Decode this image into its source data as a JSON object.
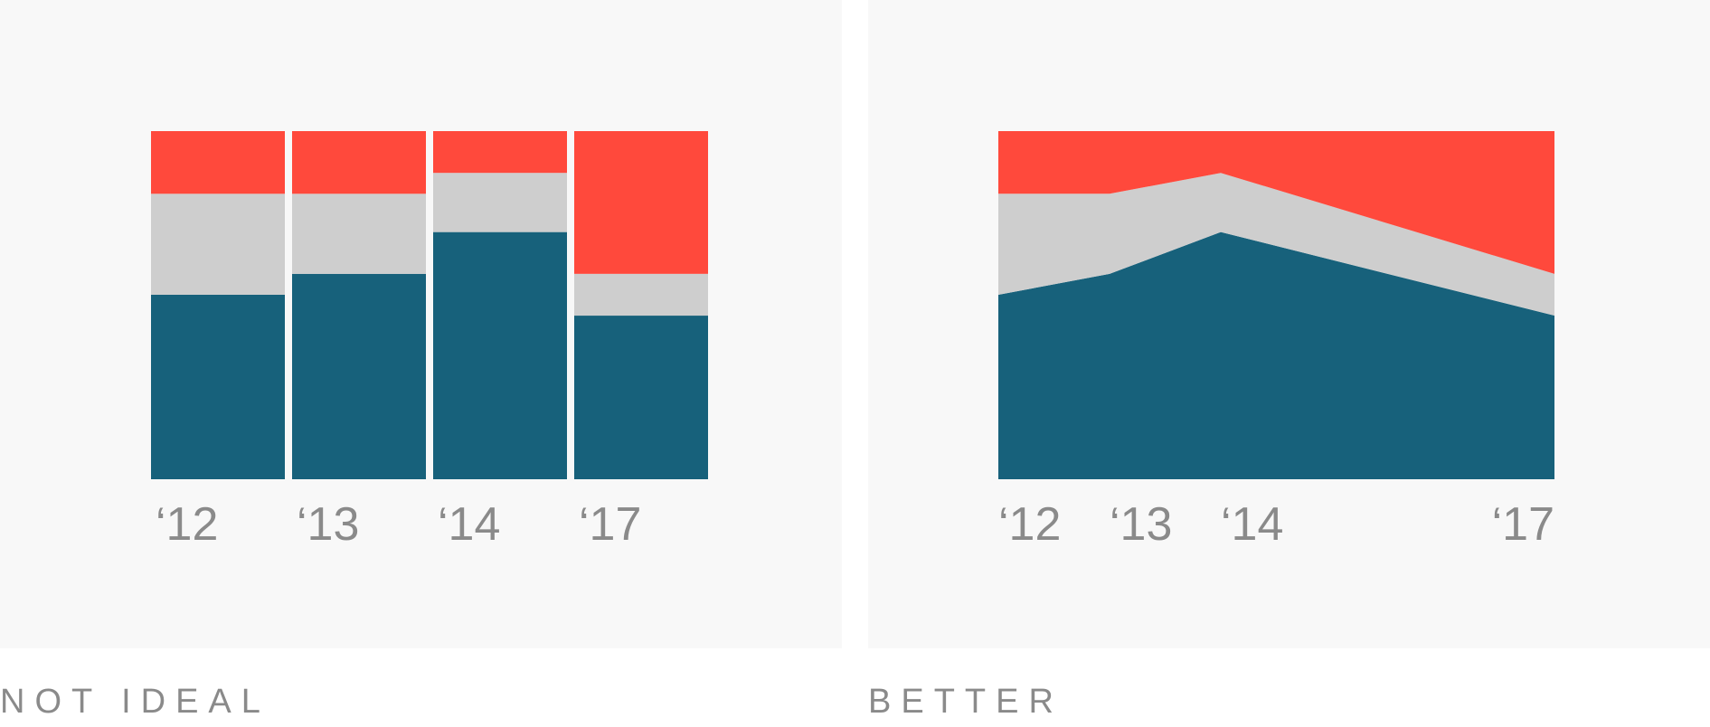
{
  "colors": {
    "bottom": "#17617b",
    "middle": "#cecece",
    "top": "#ff493c",
    "panel_bg": "#f8f8f8",
    "text": "#8a8a8a"
  },
  "captions": {
    "left": "NOT IDEAL",
    "right": "BETTER"
  },
  "chart_data": [
    {
      "type": "bar",
      "stacked": true,
      "normalized": true,
      "categories": [
        "‘12",
        "‘13",
        "‘14",
        "‘17"
      ],
      "series": [
        {
          "values": [
            53,
            59,
            71,
            47
          ]
        },
        {
          "values": [
            29,
            23,
            17,
            12
          ]
        },
        {
          "values": [
            18,
            18,
            12,
            41
          ]
        }
      ],
      "ylim": [
        0,
        100
      ],
      "grid": false,
      "legend": "none"
    },
    {
      "type": "area",
      "stacked": true,
      "normalized": true,
      "x": [
        2012,
        2013,
        2014,
        2017
      ],
      "tick_labels": [
        "‘12",
        "‘13",
        "‘14",
        "‘17"
      ],
      "series": [
        {
          "values": [
            53,
            59,
            71,
            47
          ]
        },
        {
          "values": [
            29,
            23,
            17,
            12
          ]
        },
        {
          "values": [
            18,
            18,
            12,
            41
          ]
        }
      ],
      "xlim": [
        2012,
        2017
      ],
      "ylim": [
        0,
        100
      ],
      "grid": false,
      "legend": "none"
    }
  ]
}
